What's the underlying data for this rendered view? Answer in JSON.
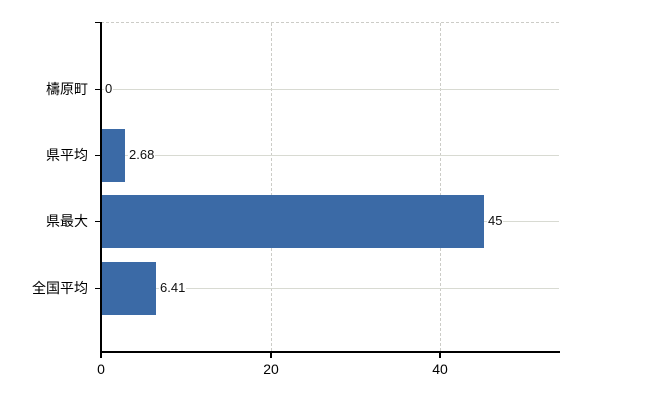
{
  "chart_data": {
    "type": "bar",
    "orientation": "horizontal",
    "title": "",
    "categories": [
      "檮原町",
      "県平均",
      "県最大",
      "全国平均"
    ],
    "values": [
      0,
      2.68,
      45,
      6.41
    ],
    "value_labels": [
      "0",
      "2.68",
      "45",
      "6.41"
    ],
    "x_ticks": [
      0,
      20,
      40
    ],
    "x_tick_labels": [
      "0",
      "20",
      "40"
    ],
    "xlim": [
      0,
      54
    ],
    "grid": true,
    "legend": false,
    "bar_color": "#3b6aa6",
    "axis_color": "#000000",
    "vertical_gridline_color": "#ccccc7",
    "row_line_color": "#d8dad2",
    "background": "#ffffff"
  }
}
